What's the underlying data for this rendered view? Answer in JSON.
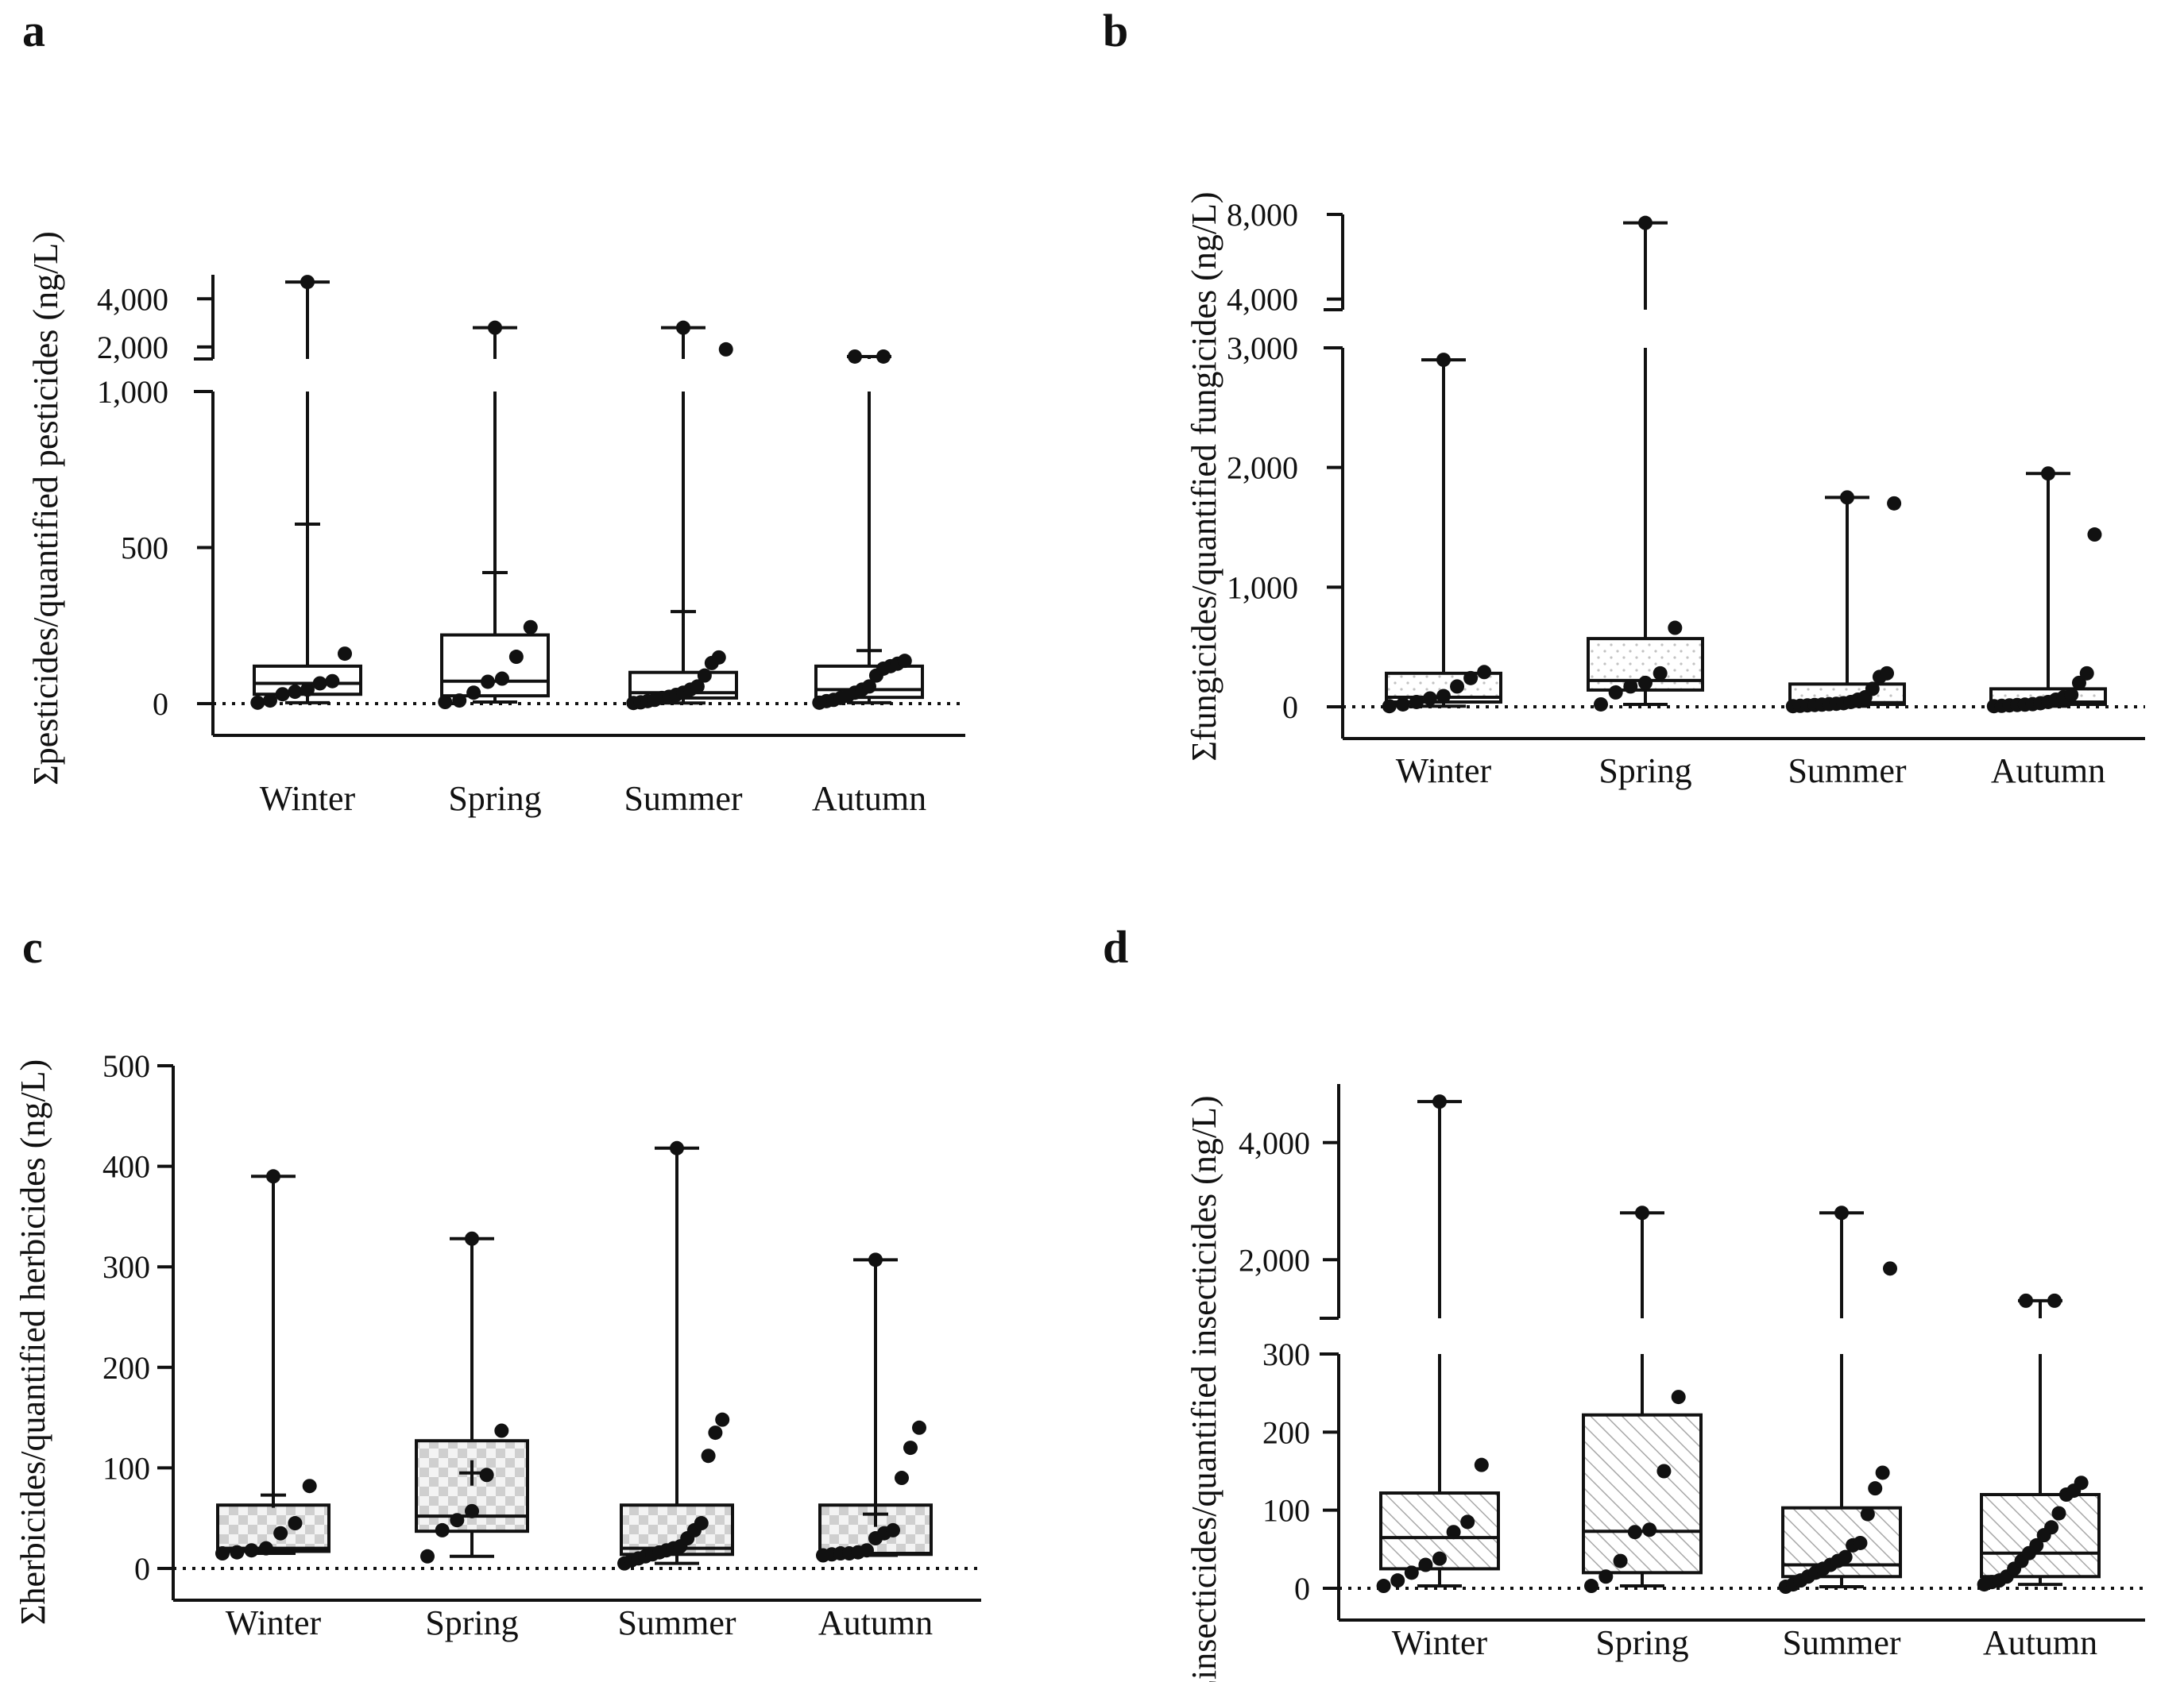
{
  "figure": {
    "colors": {
      "ink": "#111111",
      "hatch": "#9a9a9a",
      "check_dark": "#cfcfcf",
      "check_light": "#f2f2f2",
      "dots": "#bdbdbd"
    }
  },
  "chart_data": [
    {
      "panel": "a",
      "type": "box",
      "title": "",
      "ylabel": "Σpesticides/quantified pesticides (ng/L)",
      "xlabel": "",
      "categories": [
        "Winter",
        "Spring",
        "Summer",
        "Autumn"
      ],
      "box_fill": "none",
      "axis_break": {
        "lower_max": 1000,
        "upper_range": [
          1500,
          5000
        ]
      },
      "lower_ticks": [
        {
          "v": 0,
          "label": "0"
        },
        {
          "v": 500,
          "label": "500"
        },
        {
          "v": 1000,
          "label": "1,000"
        }
      ],
      "upper_ticks": [
        {
          "v": 2000,
          "label": "2,000"
        },
        {
          "v": 4000,
          "label": "4,000"
        }
      ],
      "reference_line": 0,
      "boxes": [
        {
          "category": "Winter",
          "min": 3,
          "q1": 30,
          "median": 65,
          "q3": 120,
          "max": 4700,
          "mean": 575,
          "points": [
            3,
            10,
            30,
            38,
            45,
            65,
            72,
            160,
            4700
          ]
        },
        {
          "category": "Spring",
          "min": 5,
          "q1": 25,
          "median": 72,
          "q3": 220,
          "max": 2800,
          "mean": 420,
          "points": [
            5,
            10,
            35,
            70,
            80,
            150,
            245,
            2800
          ]
        },
        {
          "category": "Summer",
          "min": 2,
          "q1": 18,
          "median": 35,
          "q3": 100,
          "max": 2800,
          "mean": 295,
          "points": [
            2,
            4,
            8,
            12,
            18,
            22,
            28,
            35,
            45,
            55,
            90,
            130,
            148,
            1900,
            2800
          ]
        },
        {
          "category": "Autumn",
          "min": 3,
          "q1": 20,
          "median": 45,
          "q3": 120,
          "max": 1600,
          "mean": 170,
          "points": [
            3,
            8,
            12,
            18,
            25,
            35,
            45,
            55,
            90,
            112,
            120,
            128,
            137,
            1600,
            1600
          ]
        }
      ]
    },
    {
      "panel": "b",
      "type": "box",
      "title": "",
      "ylabel": "Σfungicides/quantified fungicides (ng/L)",
      "xlabel": "",
      "categories": [
        "Winter",
        "Spring",
        "Summer",
        "Autumn"
      ],
      "box_fill": "dots",
      "axis_break": {
        "lower_max": 3000,
        "upper_range": [
          3500,
          8000
        ]
      },
      "lower_ticks": [
        {
          "v": 0,
          "label": "0"
        },
        {
          "v": 1000,
          "label": "1,000"
        },
        {
          "v": 2000,
          "label": "2,000"
        },
        {
          "v": 3000,
          "label": "3,000"
        }
      ],
      "upper_ticks": [
        {
          "v": 4000,
          "label": "4,000"
        },
        {
          "v": 8000,
          "label": "8,000"
        }
      ],
      "reference_line": 0,
      "boxes": [
        {
          "category": "Winter",
          "min": 5,
          "q1": 40,
          "median": 80,
          "q3": 280,
          "max": 2900,
          "mean": null,
          "points": [
            5,
            20,
            40,
            70,
            90,
            170,
            240,
            290,
            2900
          ]
        },
        {
          "category": "Spring",
          "min": 20,
          "q1": 140,
          "median": 220,
          "q3": 570,
          "max": 7600,
          "mean": null,
          "points": [
            20,
            120,
            170,
            200,
            280,
            660,
            7600
          ]
        },
        {
          "category": "Summer",
          "min": 5,
          "q1": 20,
          "median": 35,
          "q3": 190,
          "max": 1750,
          "mean": null,
          "points": [
            5,
            8,
            12,
            15,
            18,
            22,
            25,
            30,
            40,
            60,
            80,
            150,
            250,
            280,
            1700,
            1750
          ]
        },
        {
          "category": "Autumn",
          "min": 5,
          "q1": 20,
          "median": 40,
          "q3": 150,
          "max": 1950,
          "mean": null,
          "points": [
            5,
            8,
            12,
            15,
            18,
            22,
            30,
            40,
            60,
            80,
            100,
            200,
            280,
            1440,
            1950
          ]
        }
      ]
    },
    {
      "panel": "c",
      "type": "box",
      "title": "",
      "ylabel": "Σherbicides/quantified herbicides (ng/L)",
      "xlabel": "",
      "categories": [
        "Winter",
        "Spring",
        "Summer",
        "Autumn"
      ],
      "box_fill": "checker",
      "axis_break": null,
      "ylim": [
        0,
        500
      ],
      "lower_ticks": [
        {
          "v": 0,
          "label": "0"
        },
        {
          "v": 100,
          "label": "100"
        },
        {
          "v": 200,
          "label": "200"
        },
        {
          "v": 300,
          "label": "300"
        },
        {
          "v": 400,
          "label": "400"
        },
        {
          "v": 500,
          "label": "500"
        }
      ],
      "upper_ticks": [],
      "reference_line": 0,
      "boxes": [
        {
          "category": "Winter",
          "min": 15,
          "q1": 17,
          "median": 20,
          "q3": 63,
          "max": 390,
          "mean": 73,
          "points": [
            15,
            16,
            18,
            20,
            35,
            45,
            82,
            390
          ]
        },
        {
          "category": "Spring",
          "min": 12,
          "q1": 37,
          "median": 52,
          "q3": 127,
          "max": 328,
          "mean": 95,
          "points": [
            12,
            38,
            48,
            57,
            93,
            137,
            328
          ]
        },
        {
          "category": "Summer",
          "min": 5,
          "q1": 14,
          "median": 20,
          "q3": 63,
          "max": 418,
          "mean": null,
          "points": [
            5,
            8,
            10,
            12,
            14,
            16,
            18,
            20,
            22,
            30,
            38,
            45,
            112,
            135,
            148,
            418
          ]
        },
        {
          "category": "Autumn",
          "min": 13,
          "q1": 14,
          "median": 15,
          "q3": 63,
          "max": 307,
          "mean": 54,
          "points": [
            13,
            14,
            15,
            15,
            16,
            18,
            30,
            35,
            38,
            90,
            120,
            140,
            307
          ]
        }
      ]
    },
    {
      "panel": "d",
      "type": "box",
      "title": "",
      "ylabel": "Σinsecticides/quantified insecticides (ng/L)",
      "xlabel": "",
      "categories": [
        "Winter",
        "Spring",
        "Summer",
        "Autumn"
      ],
      "box_fill": "hatch",
      "axis_break": {
        "lower_max": 300,
        "upper_range": [
          1000,
          5000
        ]
      },
      "lower_ticks": [
        {
          "v": 0,
          "label": "0"
        },
        {
          "v": 100,
          "label": "100"
        },
        {
          "v": 200,
          "label": "200"
        },
        {
          "v": 300,
          "label": "300"
        }
      ],
      "upper_ticks": [
        {
          "v": 2000,
          "label": "2,000"
        },
        {
          "v": 4000,
          "label": "4,000"
        }
      ],
      "reference_line": 0,
      "boxes": [
        {
          "category": "Winter",
          "min": 3,
          "q1": 25,
          "median": 65,
          "q3": 122,
          "max": 4700,
          "mean": null,
          "points": [
            3,
            10,
            20,
            30,
            38,
            72,
            85,
            158,
            4700
          ]
        },
        {
          "category": "Spring",
          "min": 3,
          "q1": 20,
          "median": 73,
          "q3": 222,
          "max": 2800,
          "mean": null,
          "points": [
            3,
            15,
            35,
            72,
            75,
            150,
            245,
            2800
          ]
        },
        {
          "category": "Summer",
          "min": 2,
          "q1": 15,
          "median": 30,
          "q3": 103,
          "max": 2800,
          "mean": null,
          "points": [
            2,
            5,
            10,
            15,
            20,
            25,
            30,
            35,
            40,
            55,
            58,
            95,
            128,
            148,
            1850,
            2800
          ]
        },
        {
          "category": "Autumn",
          "min": 5,
          "q1": 15,
          "median": 45,
          "q3": 120,
          "max": 1300,
          "mean": null,
          "points": [
            5,
            8,
            10,
            15,
            25,
            35,
            45,
            55,
            68,
            78,
            96,
            120,
            125,
            135,
            1300,
            1300
          ]
        }
      ]
    }
  ]
}
